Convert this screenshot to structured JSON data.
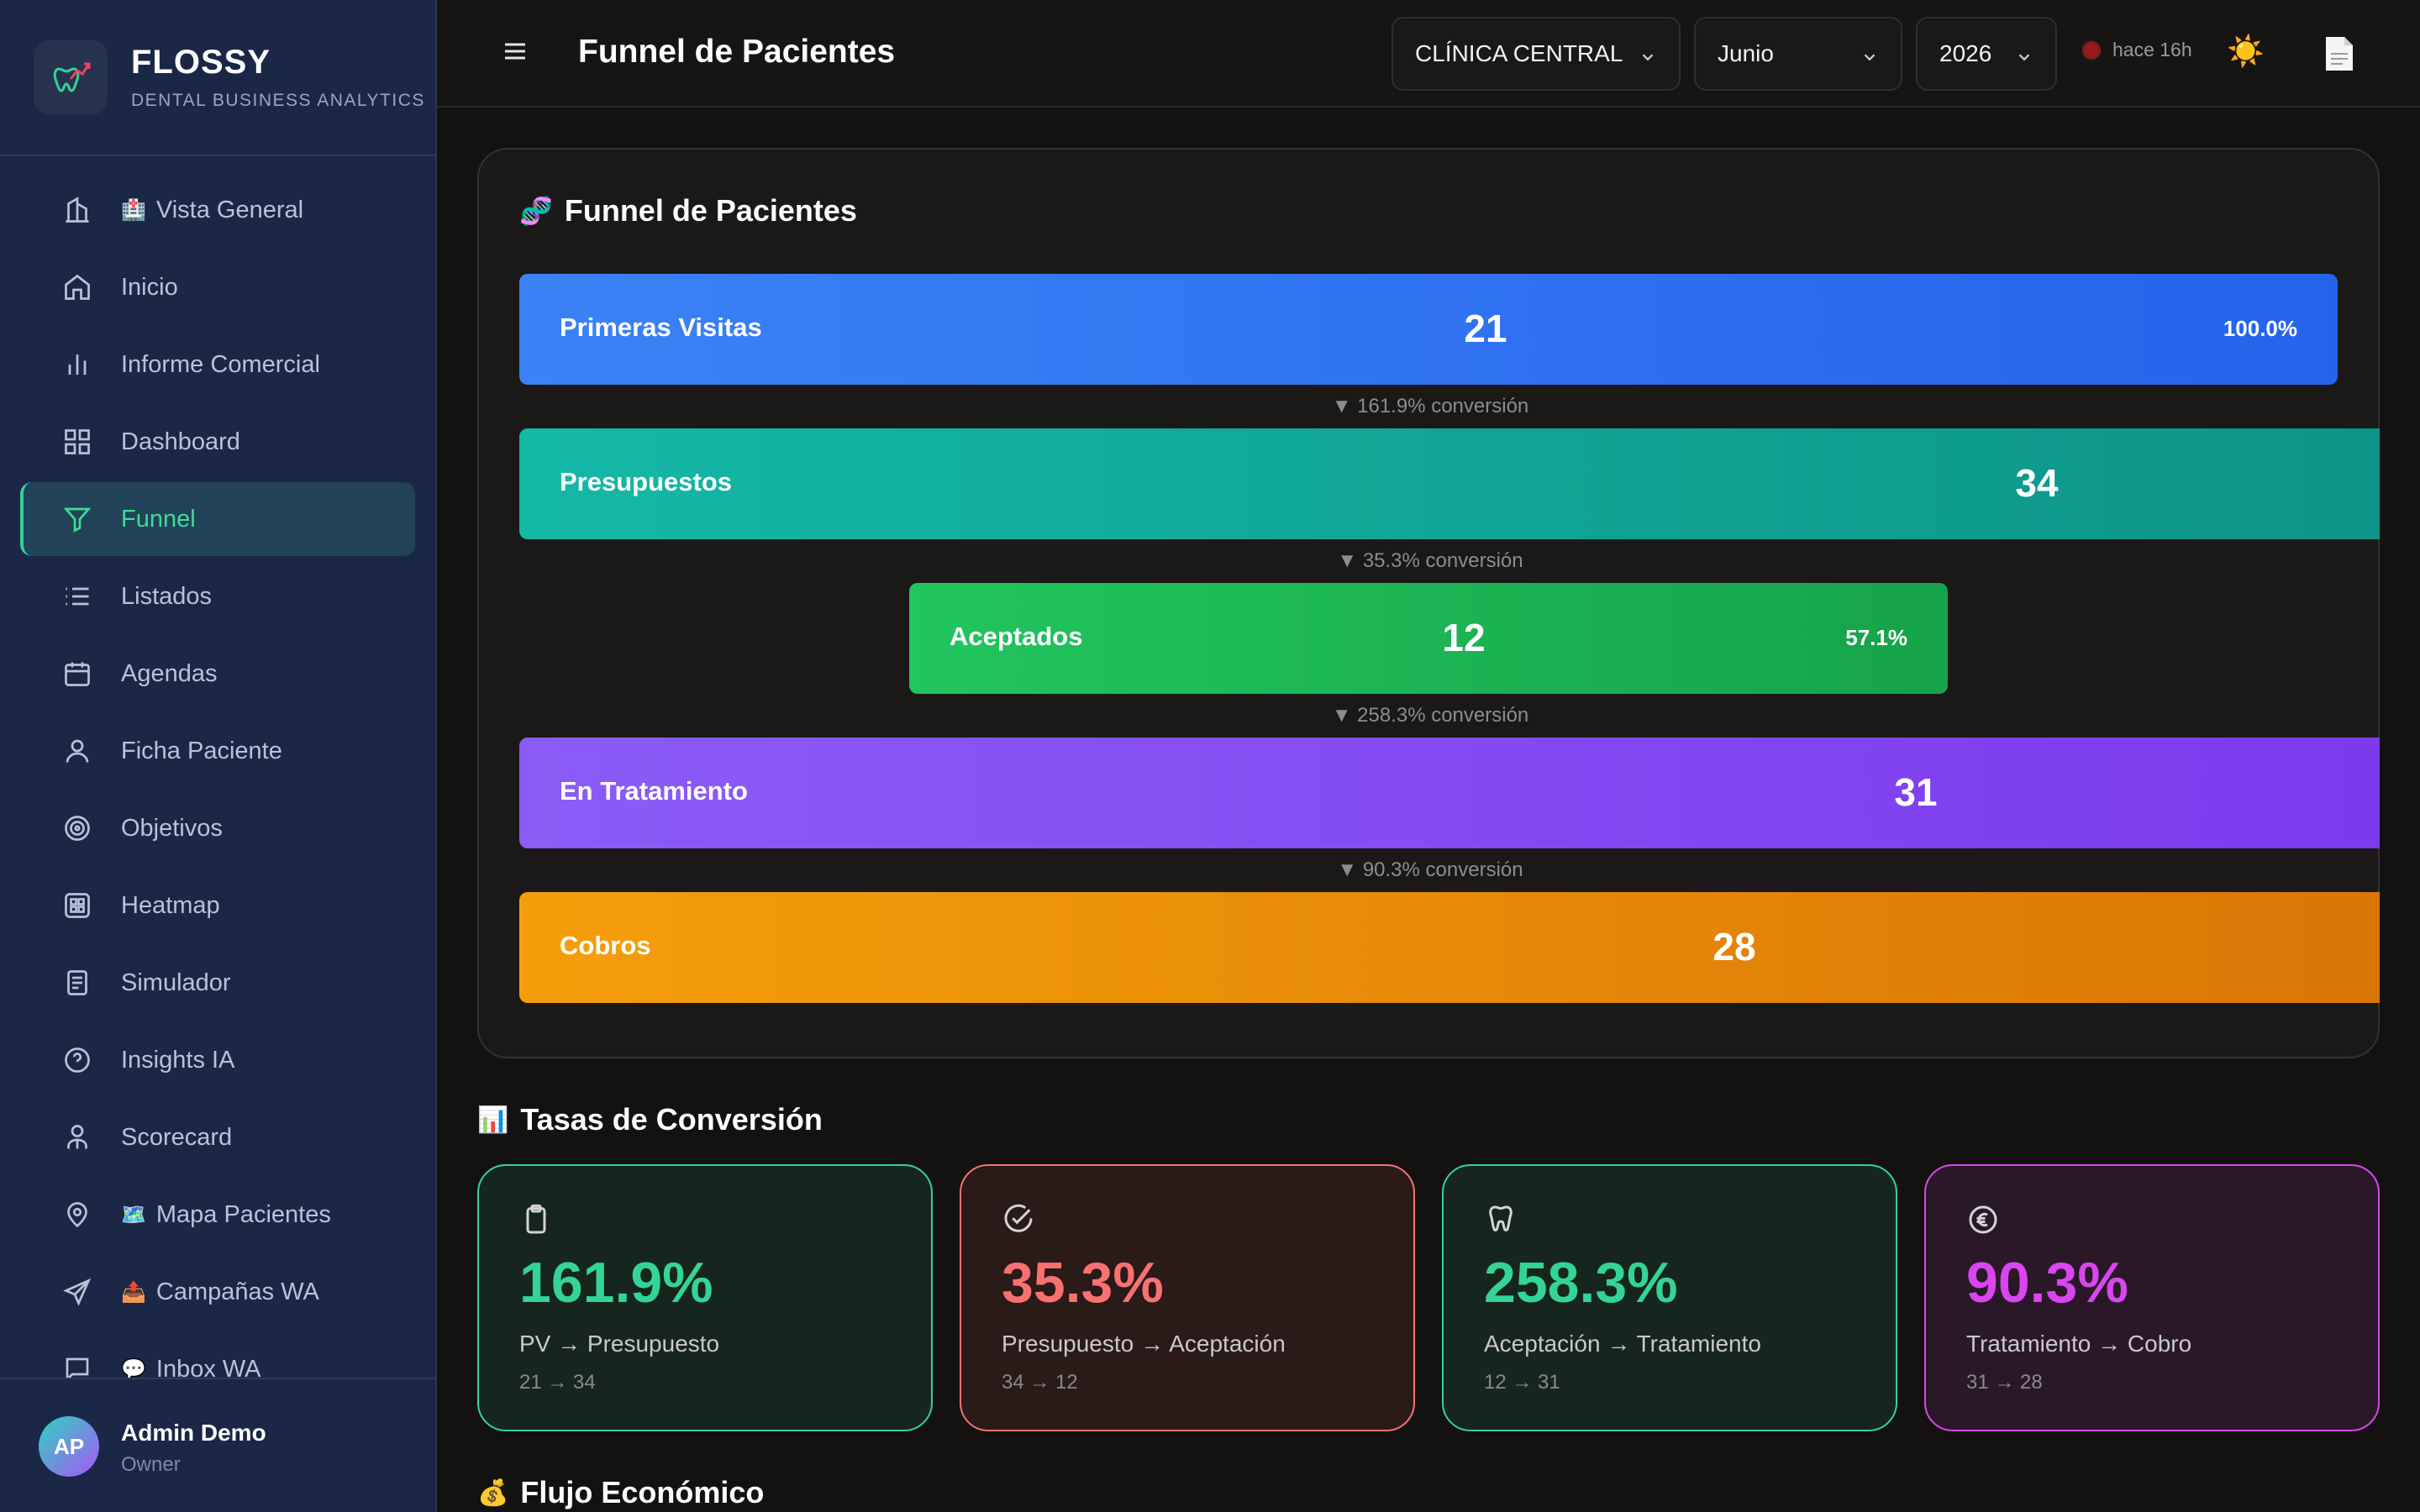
{
  "brand": {
    "name": "FLOSSY",
    "subtitle": "DENTAL BUSINESS ANALYTICS"
  },
  "sidebar": {
    "items": [
      {
        "label": "Vista General",
        "emoji": "🏥",
        "icon": "building-icon"
      },
      {
        "label": "Inicio",
        "icon": "home-icon"
      },
      {
        "label": "Informe Comercial",
        "icon": "bar-chart-icon"
      },
      {
        "label": "Dashboard",
        "icon": "grid-icon"
      },
      {
        "label": "Funnel",
        "icon": "filter-icon",
        "active": true
      },
      {
        "label": "Listados",
        "icon": "list-icon"
      },
      {
        "label": "Agendas",
        "icon": "calendar-icon"
      },
      {
        "label": "Ficha Paciente",
        "icon": "user-icon"
      },
      {
        "label": "Objetivos",
        "icon": "target-icon"
      },
      {
        "label": "Heatmap",
        "icon": "heatmap-icon"
      },
      {
        "label": "Simulador",
        "icon": "calculator-icon"
      },
      {
        "label": "Insights IA",
        "icon": "help-circle-icon"
      },
      {
        "label": "Scorecard",
        "icon": "user-check-icon"
      },
      {
        "label": "Mapa Pacientes",
        "emoji": "🗺️",
        "icon": "map-pin-icon"
      },
      {
        "label": "Campañas WA",
        "emoji": "📤",
        "icon": "send-icon"
      },
      {
        "label": "Inbox WA",
        "emoji": "💬",
        "icon": "chat-icon"
      }
    ]
  },
  "user": {
    "initials": "AP",
    "name": "Admin Demo",
    "role": "Owner"
  },
  "header": {
    "title": "Funnel de Pacientes",
    "clinic": "CLÍNICA CENTRAL",
    "month": "Junio",
    "year": "2026",
    "status": "hace 16h",
    "theme_icon": "☀️"
  },
  "funnel": {
    "title": "Funnel de Pacientes",
    "title_emoji": "🧬",
    "stages": [
      {
        "label": "Primeras Visitas",
        "value": "21",
        "pct": "100.0%"
      },
      {
        "label": "Presupuestos",
        "value": "34",
        "pct": ""
      },
      {
        "label": "Aceptados",
        "value": "12",
        "pct": "57.1%"
      },
      {
        "label": "En Tratamiento",
        "value": "31",
        "pct": ""
      },
      {
        "label": "Cobros",
        "value": "28",
        "pct": ""
      }
    ],
    "conversions": [
      "▼ 161.9% conversión",
      "▼ 35.3% conversión",
      "▼ 258.3% conversión",
      "▼ 90.3% conversión"
    ]
  },
  "rates": {
    "title": "Tasas de Conversión",
    "title_emoji": "📊",
    "cards": [
      {
        "value": "161.9%",
        "label": "PV → Presupuesto",
        "detail": "21 → 34",
        "icon": "clipboard-icon",
        "color": "#34d399"
      },
      {
        "value": "35.3%",
        "label": "Presupuesto → Aceptación",
        "detail": "34 → 12",
        "icon": "check-circle-icon",
        "color": "#f87171"
      },
      {
        "value": "258.3%",
        "label": "Aceptación → Tratamiento",
        "detail": "12 → 31",
        "icon": "tooth-icon",
        "color": "#34d399"
      },
      {
        "value": "90.3%",
        "label": "Tratamiento → Cobro",
        "detail": "31 → 28",
        "icon": "euro-icon",
        "color": "#d946ef"
      }
    ]
  },
  "economic": {
    "title": "Flujo Económico",
    "title_emoji": "💰"
  }
}
